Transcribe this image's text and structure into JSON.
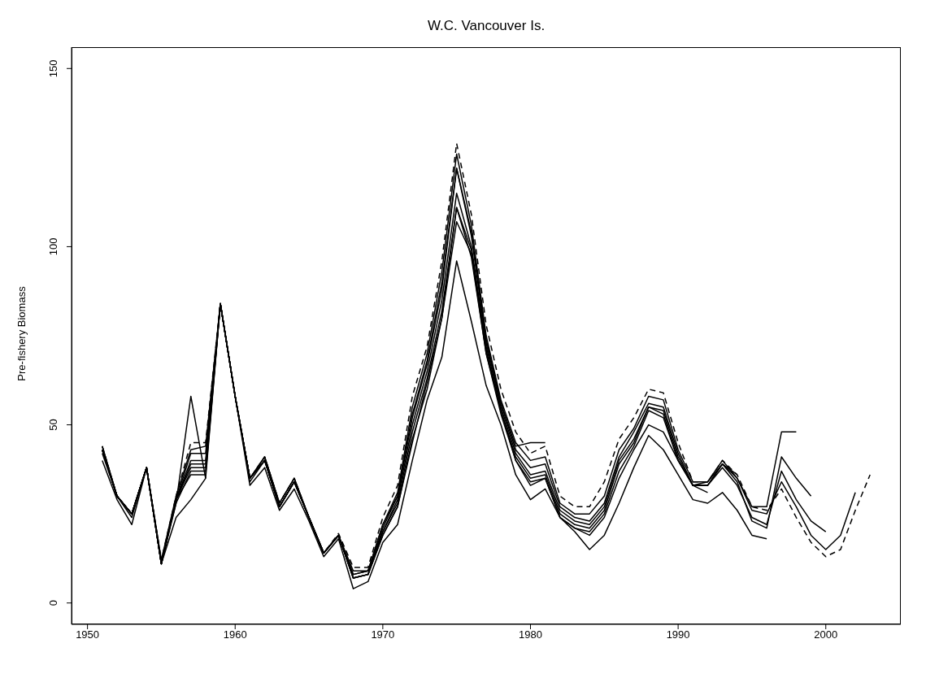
{
  "chart_data": {
    "type": "line",
    "title": "W.C. Vancouver Is.",
    "ylabel": "Pre-fishery Biomass",
    "x": [
      1951,
      1952,
      1953,
      1954,
      1955,
      1956,
      1957,
      1958,
      1959,
      1960,
      1961,
      1962,
      1963,
      1964,
      1965,
      1966,
      1967,
      1968,
      1969,
      1970,
      1971,
      1972,
      1973,
      1974,
      1975,
      1976,
      1977,
      1978,
      1979,
      1980,
      1981,
      1982,
      1983,
      1984,
      1985,
      1986,
      1987,
      1988,
      1989,
      1990,
      1991,
      1992,
      1993,
      1994,
      1995,
      1996,
      1997,
      1998,
      1999,
      2000,
      2001,
      2002,
      2003
    ],
    "xlim": [
      1948.92,
      2005.08
    ],
    "xticks": [
      1950,
      1960,
      1970,
      1980,
      1990,
      2000
    ],
    "ylim": [
      -6,
      156
    ],
    "yticks": [
      0,
      50,
      100,
      150
    ],
    "grid": false,
    "legend": false,
    "marker": "none",
    "line_style": "solid",
    "series": [
      {
        "color": "#000000",
        "line_style": "dashed",
        "values": [
          44,
          30,
          25,
          38,
          12,
          30,
          45,
          45,
          84,
          58,
          35,
          41,
          28,
          35,
          24,
          14,
          19.5,
          10,
          10,
          24,
          33,
          58,
          72,
          96,
          129,
          109,
          78,
          60,
          48,
          42,
          44,
          30,
          27,
          27,
          34,
          46,
          52,
          60,
          59,
          45,
          34,
          34,
          40,
          36,
          27,
          26,
          32,
          24,
          17,
          13,
          15,
          26,
          36
        ]
      },
      {
        "color": "#000000",
        "values": [
          43,
          30,
          25,
          38,
          11,
          29,
          39,
          39,
          84,
          58,
          35,
          40,
          27,
          34,
          24,
          14,
          19,
          8,
          9,
          22,
          31,
          55,
          70,
          93,
          126,
          106,
          75,
          57,
          45,
          40,
          41,
          28,
          25,
          25,
          30,
          43,
          49,
          58,
          57,
          43,
          34,
          34,
          40,
          35,
          26,
          25,
          34,
          27,
          19,
          15,
          19,
          31,
          null
        ]
      },
      {
        "color": "#000000",
        "values": [
          43,
          30,
          25,
          38,
          11,
          29,
          38,
          38,
          84,
          58,
          35,
          40,
          27,
          34,
          24,
          14,
          19,
          7,
          8,
          21,
          30,
          52,
          67,
          88,
          122,
          103,
          73,
          56,
          43,
          38,
          39,
          27,
          24,
          23,
          28,
          41,
          48,
          56,
          55,
          42,
          33,
          33,
          38,
          33,
          24,
          22,
          37,
          29,
          23,
          20,
          null,
          null,
          null
        ]
      },
      {
        "color": "#000000",
        "values": [
          43,
          30,
          25,
          38,
          11,
          29,
          40,
          40,
          84,
          58,
          35,
          40,
          27,
          34,
          24,
          14,
          19,
          7,
          8,
          20,
          29,
          50,
          65,
          85,
          115,
          100,
          72,
          55,
          42,
          36,
          37,
          26,
          23,
          22,
          27,
          40,
          46,
          55,
          54,
          41,
          33,
          33,
          39,
          34,
          23,
          21,
          41,
          35,
          30,
          null,
          null,
          null,
          null
        ]
      },
      {
        "color": "#000000",
        "values": [
          43,
          30,
          25,
          38,
          11,
          29,
          42,
          42,
          84,
          58,
          35,
          41,
          28,
          35,
          24,
          14,
          19,
          8,
          9,
          20,
          28,
          48,
          63,
          82,
          111,
          99,
          71,
          54,
          41,
          35,
          36,
          25,
          22,
          21,
          26,
          39,
          45,
          55,
          53,
          40,
          33,
          34,
          39,
          35,
          27,
          27,
          48,
          48,
          null,
          null,
          null,
          null,
          null
        ]
      },
      {
        "color": "#000000",
        "values": [
          42,
          30,
          25,
          38,
          11,
          28,
          37,
          37,
          84,
          58,
          34,
          40,
          27,
          34,
          24,
          14,
          19,
          7,
          8,
          19,
          27,
          46,
          60,
          80,
          107,
          98,
          70,
          54,
          40,
          34,
          35,
          24,
          21,
          20,
          25,
          37,
          44,
          54,
          52,
          40,
          33,
          33,
          39,
          36,
          null,
          null,
          null,
          null,
          null,
          null,
          null,
          null,
          null
        ]
      },
      {
        "color": "#000000",
        "values": [
          40,
          29,
          22,
          38,
          11,
          24,
          29,
          35,
          84,
          58,
          33,
          38,
          26,
          32,
          23,
          13,
          18,
          4,
          6,
          17,
          22,
          40,
          57,
          69,
          96,
          79,
          61,
          50,
          36,
          29,
          32,
          24,
          20,
          15,
          19,
          28,
          38,
          47,
          43,
          36,
          29,
          28,
          31,
          26,
          19,
          18,
          null,
          null,
          null,
          null,
          null,
          null,
          null
        ]
      },
      {
        "color": "#000000",
        "values": [
          43,
          30,
          25,
          38,
          11,
          29,
          36,
          36,
          84,
          58,
          35,
          40,
          27,
          34,
          24,
          14,
          19,
          7,
          8,
          19,
          27,
          45,
          62,
          80,
          111,
          97,
          70,
          53,
          40,
          33,
          35,
          24,
          21,
          19,
          24,
          35,
          43,
          50,
          48,
          40,
          33,
          31,
          null,
          null,
          null,
          null,
          null,
          null,
          null,
          null,
          null,
          null,
          null
        ]
      },
      {
        "color": "#000000",
        "values": [
          44,
          30,
          25,
          38,
          12,
          30,
          43,
          44,
          84,
          58,
          35,
          41,
          28,
          35,
          24,
          14,
          19,
          9,
          9,
          22,
          30,
          53,
          68,
          90,
          122,
          104,
          74,
          56,
          44,
          45,
          45,
          null,
          null,
          null,
          null,
          null,
          null,
          null,
          null,
          null,
          null,
          null,
          null,
          null,
          null,
          null,
          null,
          null,
          null,
          null,
          null,
          null,
          null
        ]
      },
      {
        "color": "#000000",
        "values": [
          44,
          30,
          24,
          38,
          12,
          28,
          58,
          35,
          null,
          null,
          null,
          null,
          null,
          null,
          null,
          null,
          null,
          null,
          null,
          null,
          null,
          null,
          null,
          null,
          null,
          null,
          null,
          null,
          null,
          null,
          null,
          null,
          null,
          null,
          null,
          null,
          null,
          null,
          null,
          null,
          null,
          null,
          null,
          null,
          null,
          null,
          null,
          null,
          null,
          null,
          null,
          null,
          null
        ]
      }
    ]
  }
}
